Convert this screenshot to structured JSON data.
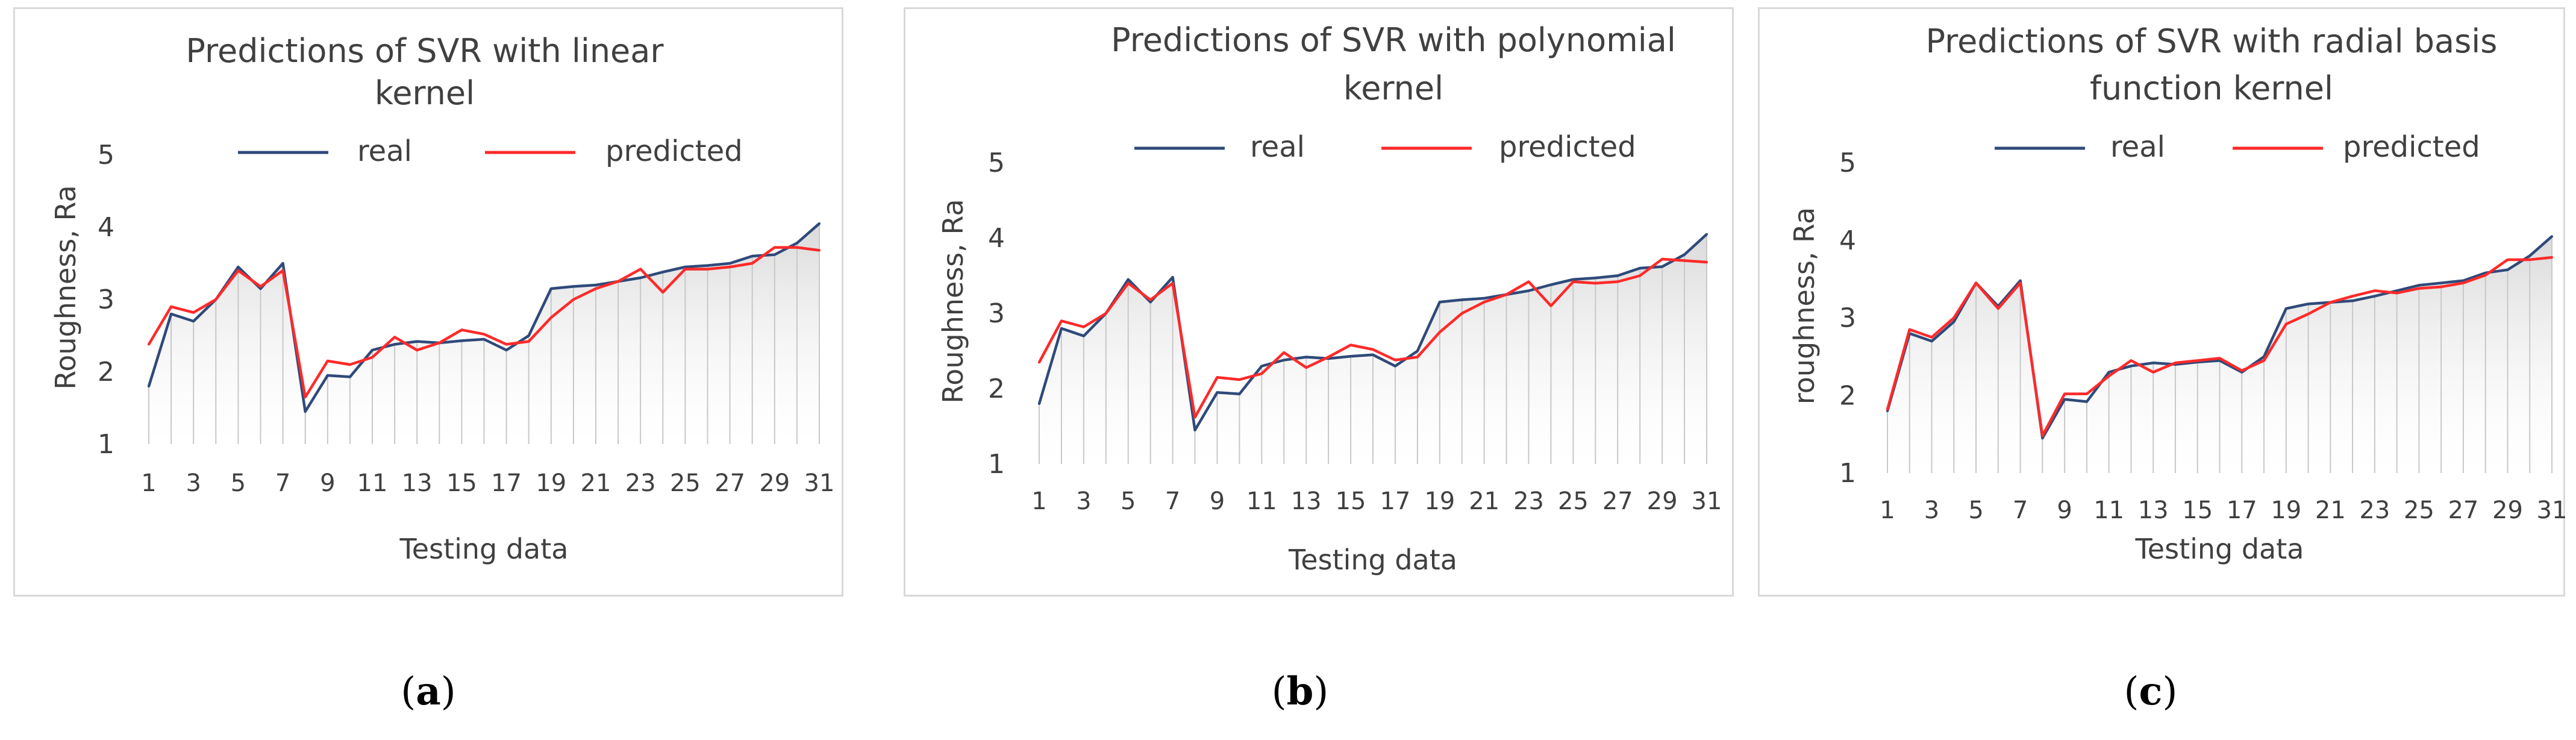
{
  "colors": {
    "real": "#2f4a7a",
    "predicted": "#ff2a2a",
    "fill_top": "#d6d6d6",
    "drop": "#c8c8c8"
  },
  "chart_data": [
    {
      "type": "line",
      "title_lines": [
        "Predictions of SVR with linear",
        "kernel"
      ],
      "xlabel": "Testing data",
      "ylabel": "Roughness, Ra",
      "ylim": [
        1,
        5
      ],
      "yticks": [
        "1",
        "2",
        "3",
        "4",
        "5"
      ],
      "x_tick_labels": [
        "1",
        "3",
        "5",
        "7",
        "9",
        "11",
        "13",
        "15",
        "17",
        "19",
        "21",
        "23",
        "25",
        "27",
        "29",
        "31"
      ],
      "legend": [
        "real",
        "predicted"
      ],
      "panel_label": "a",
      "x": [
        1,
        2,
        3,
        4,
        5,
        6,
        7,
        8,
        9,
        10,
        11,
        12,
        13,
        14,
        15,
        16,
        17,
        18,
        19,
        20,
        21,
        22,
        23,
        24,
        25,
        26,
        27,
        28,
        29,
        30,
        31
      ],
      "series": [
        {
          "name": "real",
          "values": [
            1.8,
            2.8,
            2.7,
            3.0,
            3.45,
            3.15,
            3.5,
            1.45,
            1.95,
            1.93,
            2.3,
            2.38,
            2.42,
            2.4,
            2.43,
            2.45,
            2.3,
            2.5,
            3.15,
            3.18,
            3.2,
            3.25,
            3.3,
            3.38,
            3.45,
            3.47,
            3.5,
            3.6,
            3.62,
            3.78,
            4.05
          ]
        },
        {
          "name": "predicted",
          "values": [
            2.38,
            2.9,
            2.82,
            3.0,
            3.4,
            3.18,
            3.4,
            1.65,
            2.15,
            2.1,
            2.2,
            2.48,
            2.3,
            2.4,
            2.58,
            2.52,
            2.38,
            2.42,
            2.75,
            3.0,
            3.15,
            3.25,
            3.42,
            3.1,
            3.42,
            3.42,
            3.45,
            3.5,
            3.72,
            3.72,
            3.68
          ]
        }
      ]
    },
    {
      "type": "line",
      "title_lines": [
        "Predictions of SVR with polynomial",
        "kernel"
      ],
      "xlabel": "Testing data",
      "ylabel": "Roughness, Ra",
      "ylim": [
        1,
        5
      ],
      "yticks": [
        "1",
        "2",
        "3",
        "4",
        "5"
      ],
      "x_tick_labels": [
        "1",
        "3",
        "5",
        "7",
        "9",
        "11",
        "13",
        "15",
        "17",
        "19",
        "21",
        "23",
        "25",
        "27",
        "29",
        "31"
      ],
      "legend": [
        "real",
        "predicted"
      ],
      "panel_label": "b",
      "x": [
        1,
        2,
        3,
        4,
        5,
        6,
        7,
        8,
        9,
        10,
        11,
        12,
        13,
        14,
        15,
        16,
        17,
        18,
        19,
        20,
        21,
        22,
        23,
        24,
        25,
        26,
        27,
        28,
        29,
        30,
        31
      ],
      "series": [
        {
          "name": "real",
          "values": [
            1.8,
            2.8,
            2.7,
            3.0,
            3.45,
            3.15,
            3.48,
            1.45,
            1.95,
            1.93,
            2.3,
            2.38,
            2.42,
            2.4,
            2.43,
            2.45,
            2.3,
            2.5,
            3.15,
            3.18,
            3.2,
            3.25,
            3.3,
            3.38,
            3.45,
            3.47,
            3.5,
            3.6,
            3.62,
            3.78,
            4.05
          ]
        },
        {
          "name": "predicted",
          "values": [
            2.35,
            2.9,
            2.82,
            3.0,
            3.4,
            3.18,
            3.4,
            1.62,
            2.15,
            2.12,
            2.2,
            2.48,
            2.28,
            2.42,
            2.58,
            2.52,
            2.38,
            2.42,
            2.75,
            3.0,
            3.15,
            3.25,
            3.42,
            3.1,
            3.42,
            3.4,
            3.42,
            3.5,
            3.72,
            3.7,
            3.68
          ]
        }
      ]
    },
    {
      "type": "line",
      "title_lines": [
        "Predictions of SVR with radial basis",
        "function kernel"
      ],
      "xlabel": "Testing data",
      "ylabel": "roughness, Ra",
      "ylim": [
        1,
        5
      ],
      "yticks": [
        "1",
        "2",
        "3",
        "4",
        "5"
      ],
      "x_tick_labels": [
        "1",
        "3",
        "5",
        "7",
        "9",
        "11",
        "13",
        "15",
        "17",
        "19",
        "21",
        "23",
        "25",
        "27",
        "29",
        "31"
      ],
      "legend": [
        "real",
        "predicted"
      ],
      "panel_label": "c",
      "x": [
        1,
        2,
        3,
        4,
        5,
        6,
        7,
        8,
        9,
        10,
        11,
        12,
        13,
        14,
        15,
        16,
        17,
        18,
        19,
        20,
        21,
        22,
        23,
        24,
        25,
        26,
        27,
        28,
        29,
        30,
        31
      ],
      "series": [
        {
          "name": "real",
          "values": [
            1.8,
            2.8,
            2.7,
            2.95,
            3.45,
            3.15,
            3.48,
            1.45,
            1.95,
            1.92,
            2.3,
            2.38,
            2.42,
            2.4,
            2.43,
            2.45,
            2.3,
            2.5,
            3.12,
            3.18,
            3.2,
            3.22,
            3.28,
            3.35,
            3.42,
            3.45,
            3.48,
            3.58,
            3.62,
            3.8,
            4.05
          ]
        },
        {
          "name": "predicted",
          "values": [
            1.82,
            2.85,
            2.75,
            3.0,
            3.45,
            3.12,
            3.45,
            1.48,
            2.02,
            2.02,
            2.25,
            2.45,
            2.3,
            2.42,
            2.45,
            2.48,
            2.32,
            2.45,
            2.92,
            3.05,
            3.2,
            3.28,
            3.35,
            3.32,
            3.38,
            3.4,
            3.45,
            3.55,
            3.75,
            3.75,
            3.78
          ]
        }
      ]
    }
  ]
}
